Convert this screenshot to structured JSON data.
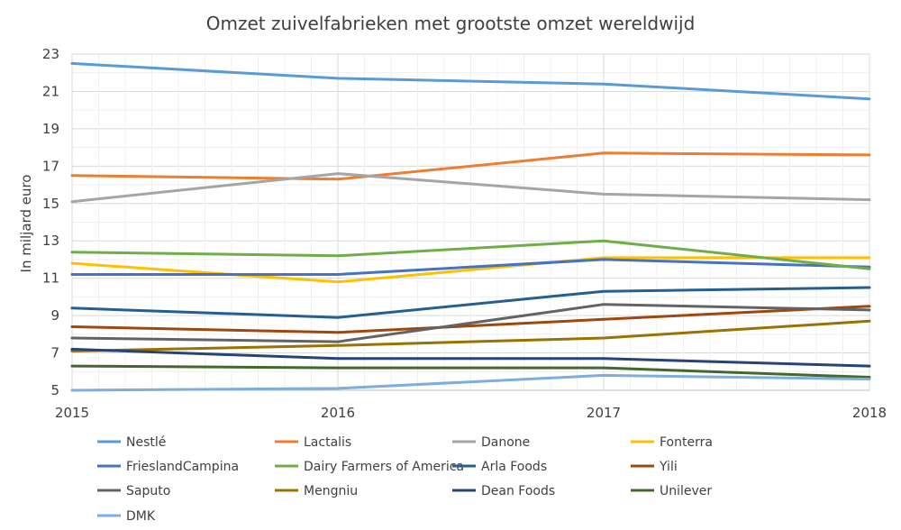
{
  "chart_data": {
    "type": "line",
    "title": "Omzet zuivelfabrieken met grootste omzet wereldwijd",
    "xlabel": "",
    "ylabel": "In miljard euro",
    "x": [
      2015,
      2016,
      2017,
      2018
    ],
    "x_tick_labels": [
      "2015",
      "2016",
      "2017",
      "2018"
    ],
    "ylim": [
      5,
      23
    ],
    "y_ticks": [
      5,
      7,
      9,
      11,
      13,
      15,
      17,
      19,
      21,
      23
    ],
    "y_tick_labels": [
      "5",
      "7",
      "9",
      "11",
      "13",
      "15",
      "17",
      "19",
      "21",
      "23"
    ],
    "grid": true,
    "legend_position": "bottom",
    "series": [
      {
        "name": "Nestlé",
        "color": "#5b9bd5",
        "values": [
          22.5,
          21.7,
          21.4,
          20.6
        ]
      },
      {
        "name": "Lactalis",
        "color": "#ed7d31",
        "values": [
          16.5,
          16.3,
          17.7,
          17.6
        ]
      },
      {
        "name": "Danone",
        "color": "#a5a5a5",
        "values": [
          15.1,
          16.6,
          15.5,
          15.2
        ]
      },
      {
        "name": "Fonterra",
        "color": "#ffc000",
        "values": [
          11.8,
          10.8,
          12.1,
          12.1
        ]
      },
      {
        "name": "FrieslandCampina",
        "color": "#4472c4",
        "values": [
          11.2,
          11.2,
          12.0,
          11.6
        ]
      },
      {
        "name": "Dairy Farmers of America",
        "color": "#70ad47",
        "values": [
          12.4,
          12.2,
          13.0,
          11.5
        ]
      },
      {
        "name": "Arla Foods",
        "color": "#255e91",
        "values": [
          9.4,
          8.9,
          10.3,
          10.5
        ]
      },
      {
        "name": "Yili",
        "color": "#9e480e",
        "values": [
          8.4,
          8.1,
          8.8,
          9.5
        ]
      },
      {
        "name": "Saputo",
        "color": "#636363",
        "values": [
          7.8,
          7.6,
          9.6,
          9.3
        ]
      },
      {
        "name": "Mengniu",
        "color": "#997300",
        "values": [
          7.1,
          7.4,
          7.8,
          8.7
        ]
      },
      {
        "name": "Dean Foods",
        "color": "#264478",
        "values": [
          7.2,
          6.7,
          6.7,
          6.3
        ]
      },
      {
        "name": "Unilever",
        "color": "#43682b",
        "values": [
          6.3,
          6.2,
          6.2,
          5.7
        ]
      },
      {
        "name": "DMK",
        "color": "#7cafdd",
        "values": [
          5.0,
          5.1,
          5.8,
          5.6
        ]
      }
    ]
  }
}
